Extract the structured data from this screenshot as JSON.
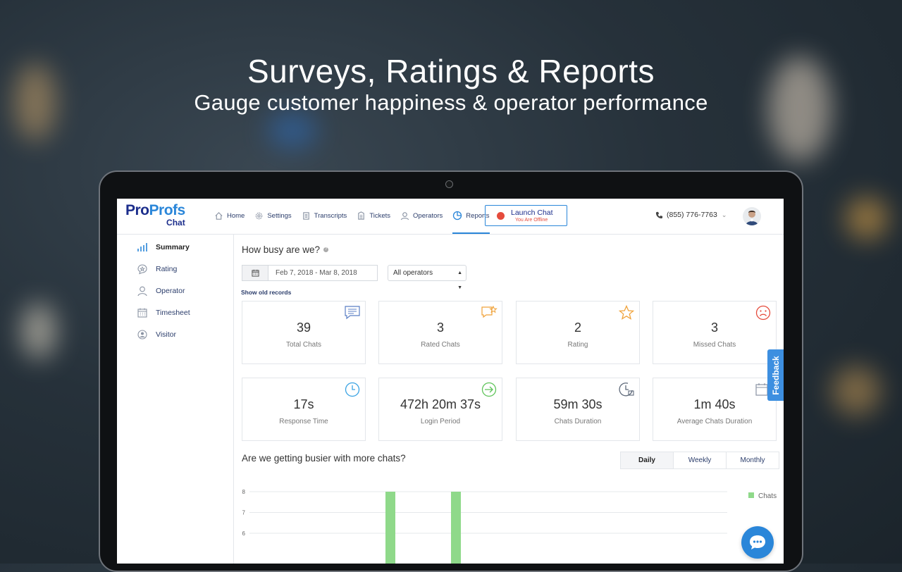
{
  "hero": {
    "title": "Surveys, Ratings & Reports",
    "subtitle": "Gauge customer happiness & operator performance"
  },
  "logo": {
    "part1": "Pro",
    "part2": "Profs",
    "product": "Chat"
  },
  "nav": [
    {
      "label": "Home",
      "icon": "home-icon"
    },
    {
      "label": "Settings",
      "icon": "gear-icon"
    },
    {
      "label": "Transcripts",
      "icon": "document-icon"
    },
    {
      "label": "Tickets",
      "icon": "ticket-icon"
    },
    {
      "label": "Operators",
      "icon": "user-icon"
    },
    {
      "label": "Reports",
      "icon": "pie-chart-icon",
      "active": true
    }
  ],
  "launch": {
    "label": "Launch Chat",
    "status": "You Are Offline"
  },
  "phone": "(855) 776-7763",
  "sidebar": [
    {
      "label": "Summary",
      "icon": "bar-chart-icon",
      "active": true
    },
    {
      "label": "Rating",
      "icon": "rating-icon"
    },
    {
      "label": "Operator",
      "icon": "user-icon"
    },
    {
      "label": "Timesheet",
      "icon": "calendar-icon"
    },
    {
      "label": "Visitor",
      "icon": "visitor-icon"
    }
  ],
  "main": {
    "heading": "How busy are we?",
    "date_range": "Feb 7, 2018 - Mar 8, 2018",
    "operator_select": "All operators",
    "show_old": "Show old records",
    "stats": [
      {
        "value": "39",
        "label": "Total Chats",
        "icon": "chat-lines-icon"
      },
      {
        "value": "3",
        "label": "Rated Chats",
        "icon": "rated-chat-icon"
      },
      {
        "value": "2",
        "label": "Rating",
        "icon": "star-icon"
      },
      {
        "value": "3",
        "label": "Missed Chats",
        "icon": "sad-face-icon"
      },
      {
        "value": "17s",
        "label": "Response Time",
        "icon": "clock-icon"
      },
      {
        "value": "472h 20m 37s",
        "label": "Login Period",
        "icon": "login-arrow-icon"
      },
      {
        "value": "59m 30s",
        "label": "Chats Duration",
        "icon": "duration-clock-icon"
      },
      {
        "value": "1m 40s",
        "label": "Average Chats Duration",
        "icon": "calendar-clock-icon"
      }
    ],
    "chart_heading": "Are we getting busier with more chats?",
    "periods": [
      "Daily",
      "Weekly",
      "Monthly"
    ]
  },
  "chart_data": {
    "type": "bar",
    "series": [
      {
        "name": "Chats",
        "color": "#8fd98a",
        "values": [
          8,
          8
        ]
      }
    ],
    "y_ticks": [
      "8",
      "7",
      "6"
    ],
    "ylim_visible": [
      5.7,
      8
    ]
  },
  "feedback": "Feedback",
  "colors": {
    "accent": "#2a86d9",
    "brand": "#1c2e8c",
    "offline": "#e54b3c",
    "bar": "#8fd98a"
  }
}
